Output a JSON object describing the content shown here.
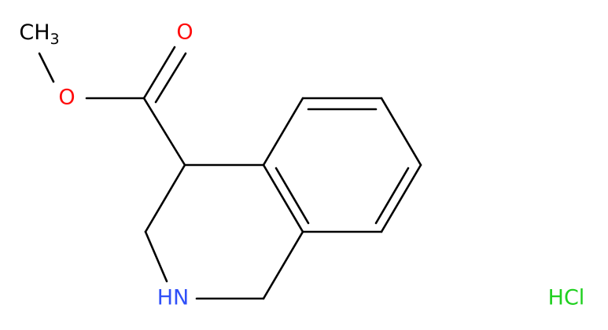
{
  "molecule": {
    "methyl": {
      "text": "CH",
      "subscript": "3"
    },
    "ester_oxygen": "O",
    "carbonyl_oxygen": "O",
    "amine": "HN",
    "salt": "HCl"
  }
}
